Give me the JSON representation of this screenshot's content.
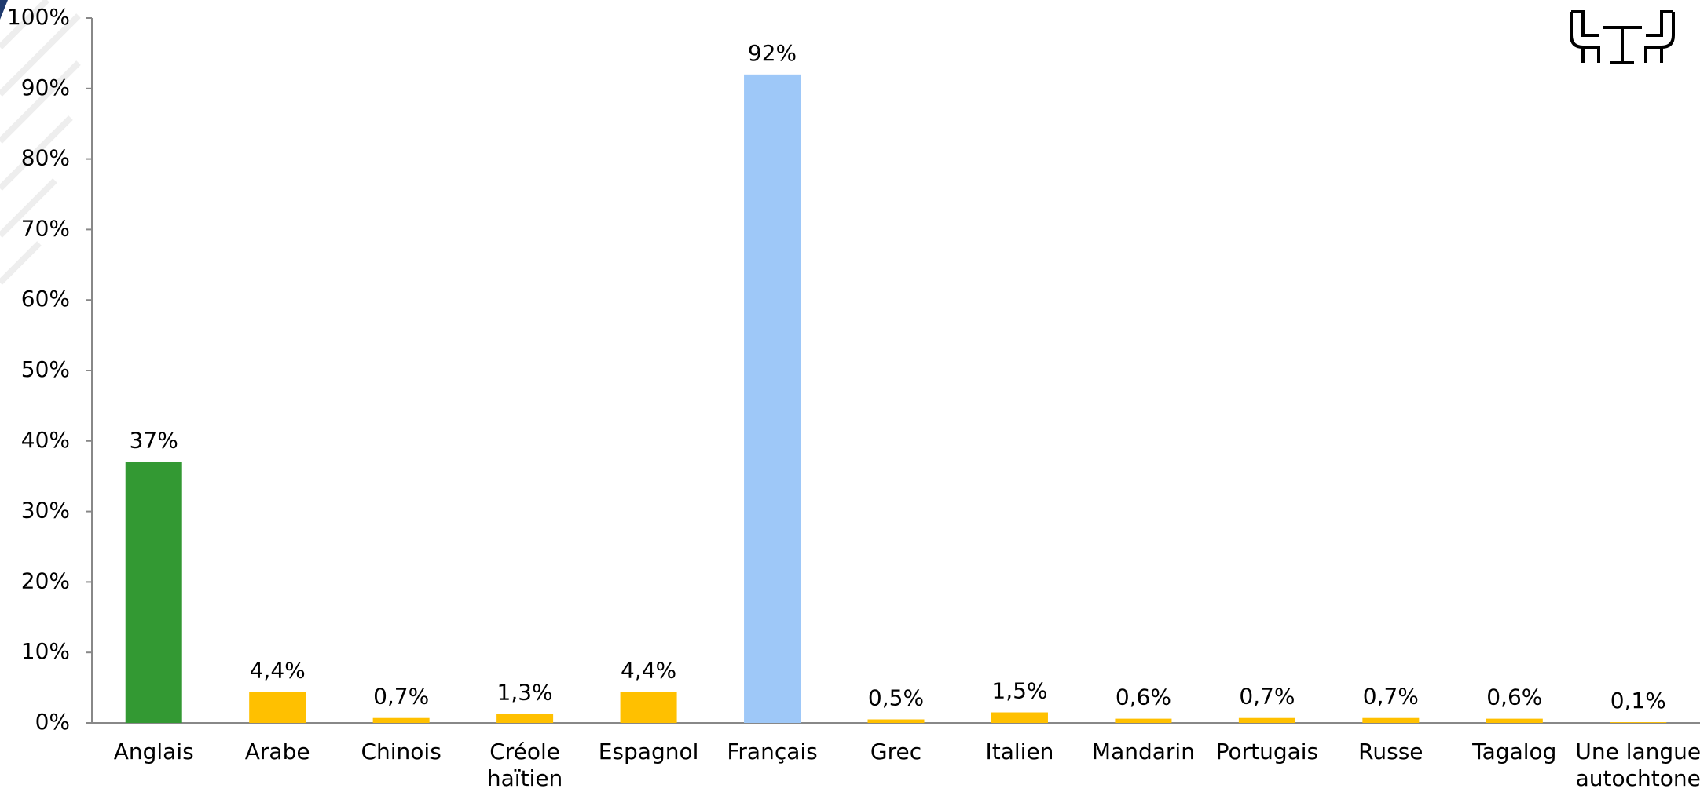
{
  "chart_data": {
    "type": "bar",
    "categories": [
      "Anglais",
      "Arabe",
      "Chinois",
      "Créole haïtien",
      "Espagnol",
      "Français",
      "Grec",
      "Italien",
      "Mandarin",
      "Portugais",
      "Russe",
      "Tagalog",
      "Une langue autochtone"
    ],
    "values": [
      37,
      4.4,
      0.7,
      1.3,
      4.4,
      92,
      0.5,
      1.5,
      0.6,
      0.7,
      0.7,
      0.6,
      0.1
    ],
    "value_labels": [
      "37%",
      "4,4%",
      "0,7%",
      "1,3%",
      "4,4%",
      "92%",
      "0,5%",
      "1,5%",
      "0,6%",
      "0,7%",
      "0,7%",
      "0,6%",
      "0,1%"
    ],
    "colors": [
      "#339933",
      "#ffc000",
      "#ffc000",
      "#ffc000",
      "#ffc000",
      "#9ec8f8",
      "#ffc000",
      "#ffc000",
      "#ffc000",
      "#ffc000",
      "#ffc000",
      "#ffc000",
      "#ffc000"
    ],
    "ylim": [
      0,
      100
    ],
    "yticks": [
      {
        "value": 0,
        "label": "0%"
      },
      {
        "value": 10,
        "label": "10%"
      },
      {
        "value": 20,
        "label": "20%"
      },
      {
        "value": 30,
        "label": "30%"
      },
      {
        "value": 40,
        "label": "40%"
      },
      {
        "value": 50,
        "label": "50%"
      },
      {
        "value": 60,
        "label": "60%"
      },
      {
        "value": 70,
        "label": "70%"
      },
      {
        "value": 80,
        "label": "80%"
      },
      {
        "value": 90,
        "label": "90%"
      },
      {
        "value": 100,
        "label": "100%"
      }
    ],
    "grid": false
  }
}
